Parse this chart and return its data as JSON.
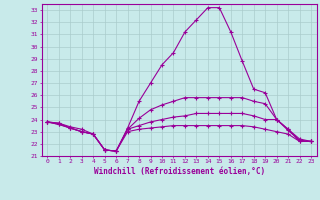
{
  "xlabel": "Windchill (Refroidissement éolien,°C)",
  "background_color": "#c8eaea",
  "grid_color": "#b0d4d4",
  "line_color": "#990099",
  "xlim": [
    -0.5,
    23.5
  ],
  "ylim": [
    21,
    33.5
  ],
  "yticks": [
    21,
    22,
    23,
    24,
    25,
    26,
    27,
    28,
    29,
    30,
    31,
    32,
    33
  ],
  "xticks": [
    0,
    1,
    2,
    3,
    4,
    5,
    6,
    7,
    8,
    9,
    10,
    11,
    12,
    13,
    14,
    15,
    16,
    17,
    18,
    19,
    20,
    21,
    22,
    23
  ],
  "series": [
    [
      23.8,
      23.7,
      23.4,
      23.2,
      22.8,
      21.5,
      21.4,
      23.3,
      25.5,
      27.0,
      28.5,
      29.5,
      31.2,
      32.2,
      33.2,
      33.2,
      31.2,
      28.8,
      26.5,
      26.2,
      24.0,
      23.2,
      22.2,
      22.2
    ],
    [
      23.8,
      23.6,
      23.3,
      23.0,
      22.8,
      21.5,
      21.4,
      23.2,
      24.1,
      24.8,
      25.2,
      25.5,
      25.8,
      25.8,
      25.8,
      25.8,
      25.8,
      25.8,
      25.5,
      25.3,
      24.0,
      23.1,
      22.3,
      22.2
    ],
    [
      23.8,
      23.6,
      23.3,
      23.0,
      22.8,
      21.5,
      21.4,
      23.2,
      23.5,
      23.8,
      24.0,
      24.2,
      24.3,
      24.5,
      24.5,
      24.5,
      24.5,
      24.5,
      24.3,
      24.0,
      24.0,
      23.2,
      22.4,
      22.2
    ],
    [
      23.8,
      23.7,
      23.3,
      23.0,
      22.8,
      21.5,
      21.4,
      23.0,
      23.2,
      23.3,
      23.4,
      23.5,
      23.5,
      23.5,
      23.5,
      23.5,
      23.5,
      23.5,
      23.4,
      23.2,
      23.0,
      22.8,
      22.2,
      22.2
    ]
  ]
}
